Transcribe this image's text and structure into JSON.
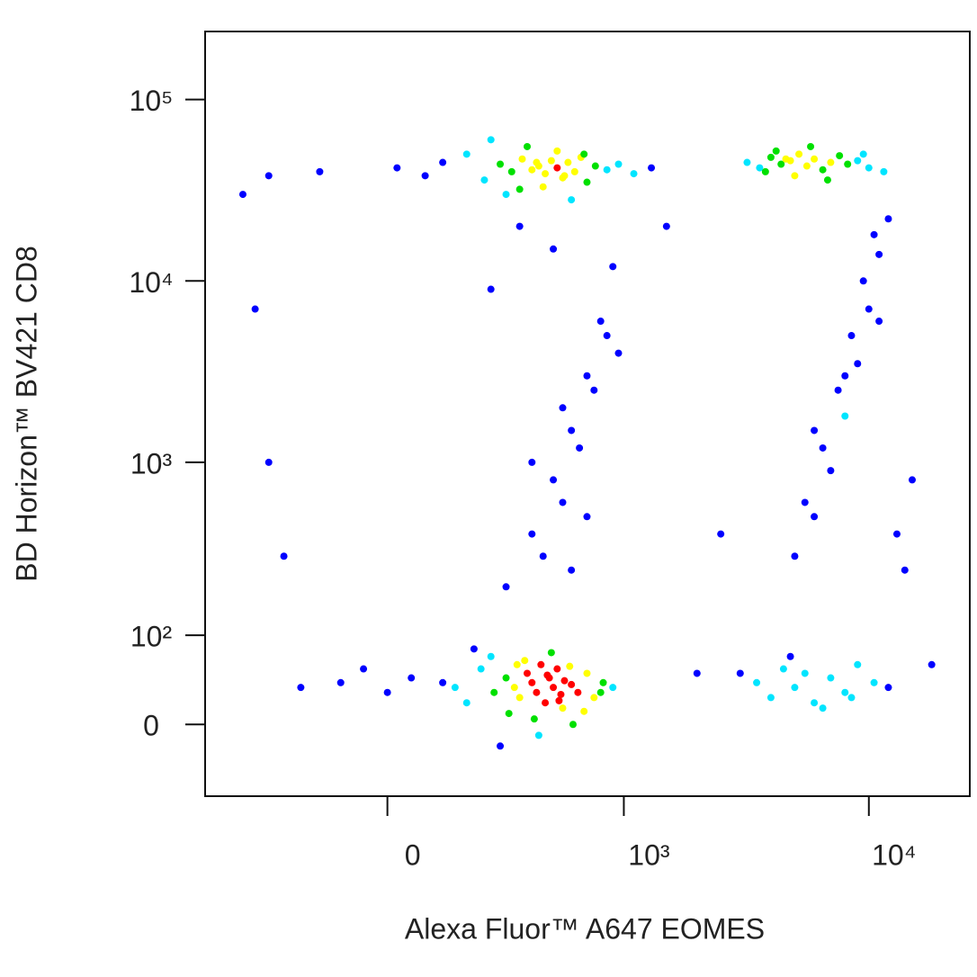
{
  "chart_data": {
    "type": "scatter",
    "x_label": "Alexa Fluor™ A647 EOMES",
    "y_label": "BD Horizon™ BV421 CD8",
    "xscale": "biexponential",
    "yscale": "biexponential",
    "xlim": [
      -590,
      25700
    ],
    "ylim": [
      -75,
      237000
    ],
    "xticks": [
      0,
      {
        "value": 1000,
        "label": "10³"
      },
      {
        "value": 10000,
        "label": "10⁴"
      }
    ],
    "yticks": [
      0,
      {
        "value": 100,
        "label": "10²"
      },
      {
        "value": 1000,
        "label": "10³"
      },
      {
        "value": 10000,
        "label": "10⁴"
      },
      {
        "value": 100000,
        "label": "10⁵"
      }
    ],
    "density_colors": [
      "#0000ff",
      "#00e5ff",
      "#00e000",
      "#ffff00",
      "#ff0000"
    ],
    "x": [
      20,
      80,
      120,
      180,
      230,
      280,
      320,
      360,
      400,
      430,
      460,
      490,
      520,
      550,
      580,
      620,
      660,
      700,
      760,
      850,
      950,
      1100,
      1300,
      -150,
      -300,
      300,
      380,
      450,
      520,
      600,
      680,
      250,
      350,
      420,
      560,
      3200,
      3600,
      4000,
      4400,
      4800,
      5200,
      5600,
      6000,
      6500,
      7000,
      7600,
      8200,
      9000,
      10000,
      11500,
      4200,
      5000,
      5800,
      6800,
      3800,
      4600,
      9500,
      120,
      180,
      220,
      260,
      300,
      330,
      350,
      380,
      400,
      420,
      440,
      460,
      480,
      500,
      520,
      540,
      560,
      600,
      640,
      700,
      750,
      820,
      900,
      250,
      310,
      370,
      430,
      490,
      550,
      610,
      150,
      200,
      280,
      340,
      410,
      470,
      530,
      590,
      680,
      800,
      -100,
      -50,
      0,
      50,
      -200,
      3500,
      4000,
      4500,
      5000,
      5500,
      6000,
      7000,
      8000,
      9000,
      10500,
      12000,
      4800,
      6500,
      3000,
      8500,
      300,
      400,
      500,
      600,
      700,
      800,
      900,
      350,
      450,
      550,
      650,
      750,
      850,
      250,
      500,
      600,
      700,
      400,
      550,
      950,
      5000,
      6000,
      7000,
      8000,
      9000,
      10000,
      11000,
      12000,
      14000,
      5500,
      6500,
      7500,
      8500,
      9500,
      10500,
      13000,
      15000,
      6000,
      8000,
      11000,
      -400,
      -350,
      -300,
      -250,
      1500,
      2000,
      2500,
      18000
    ],
    "y": [
      42000,
      38000,
      45000,
      50000,
      36000,
      44000,
      40000,
      47000,
      41000,
      43000,
      39000,
      46000,
      42000,
      37000,
      45000,
      40000,
      48000,
      35000,
      43000,
      41000,
      44000,
      39000,
      42000,
      40000,
      38000,
      30000,
      55000,
      33000,
      52000,
      28000,
      50000,
      60000,
      32000,
      45000,
      38000,
      45000,
      42000,
      48000,
      44000,
      46000,
      50000,
      43000,
      47000,
      41000,
      45000,
      49000,
      44000,
      46000,
      42000,
      40000,
      52000,
      38000,
      55000,
      36000,
      40000,
      47000,
      50000,
      40,
      20,
      55,
      30,
      45,
      35,
      25,
      50,
      40,
      30,
      60,
      20,
      45,
      35,
      55,
      28,
      42,
      38,
      30,
      50,
      25,
      40,
      35,
      70,
      10,
      65,
      -10,
      75,
      15,
      0,
      35,
      80,
      -20,
      60,
      5,
      48,
      22,
      58,
      12,
      30,
      40,
      55,
      30,
      45,
      35,
      40,
      25,
      55,
      35,
      50,
      20,
      45,
      30,
      60,
      40,
      35,
      70,
      15,
      50,
      25,
      200,
      400,
      800,
      1500,
      3000,
      6000,
      12000,
      20000,
      300,
      600,
      1200,
      2500,
      5000,
      9000,
      15000,
      250,
      500,
      1000,
      2000,
      4000,
      300,
      500,
      900,
      1800,
      3500,
      7000,
      14000,
      22000,
      250,
      600,
      1200,
      2500,
      5000,
      10000,
      18000,
      400,
      800,
      1500,
      3000,
      6000,
      30000,
      7000,
      1000,
      300,
      20000,
      50,
      400,
      60
    ]
  }
}
